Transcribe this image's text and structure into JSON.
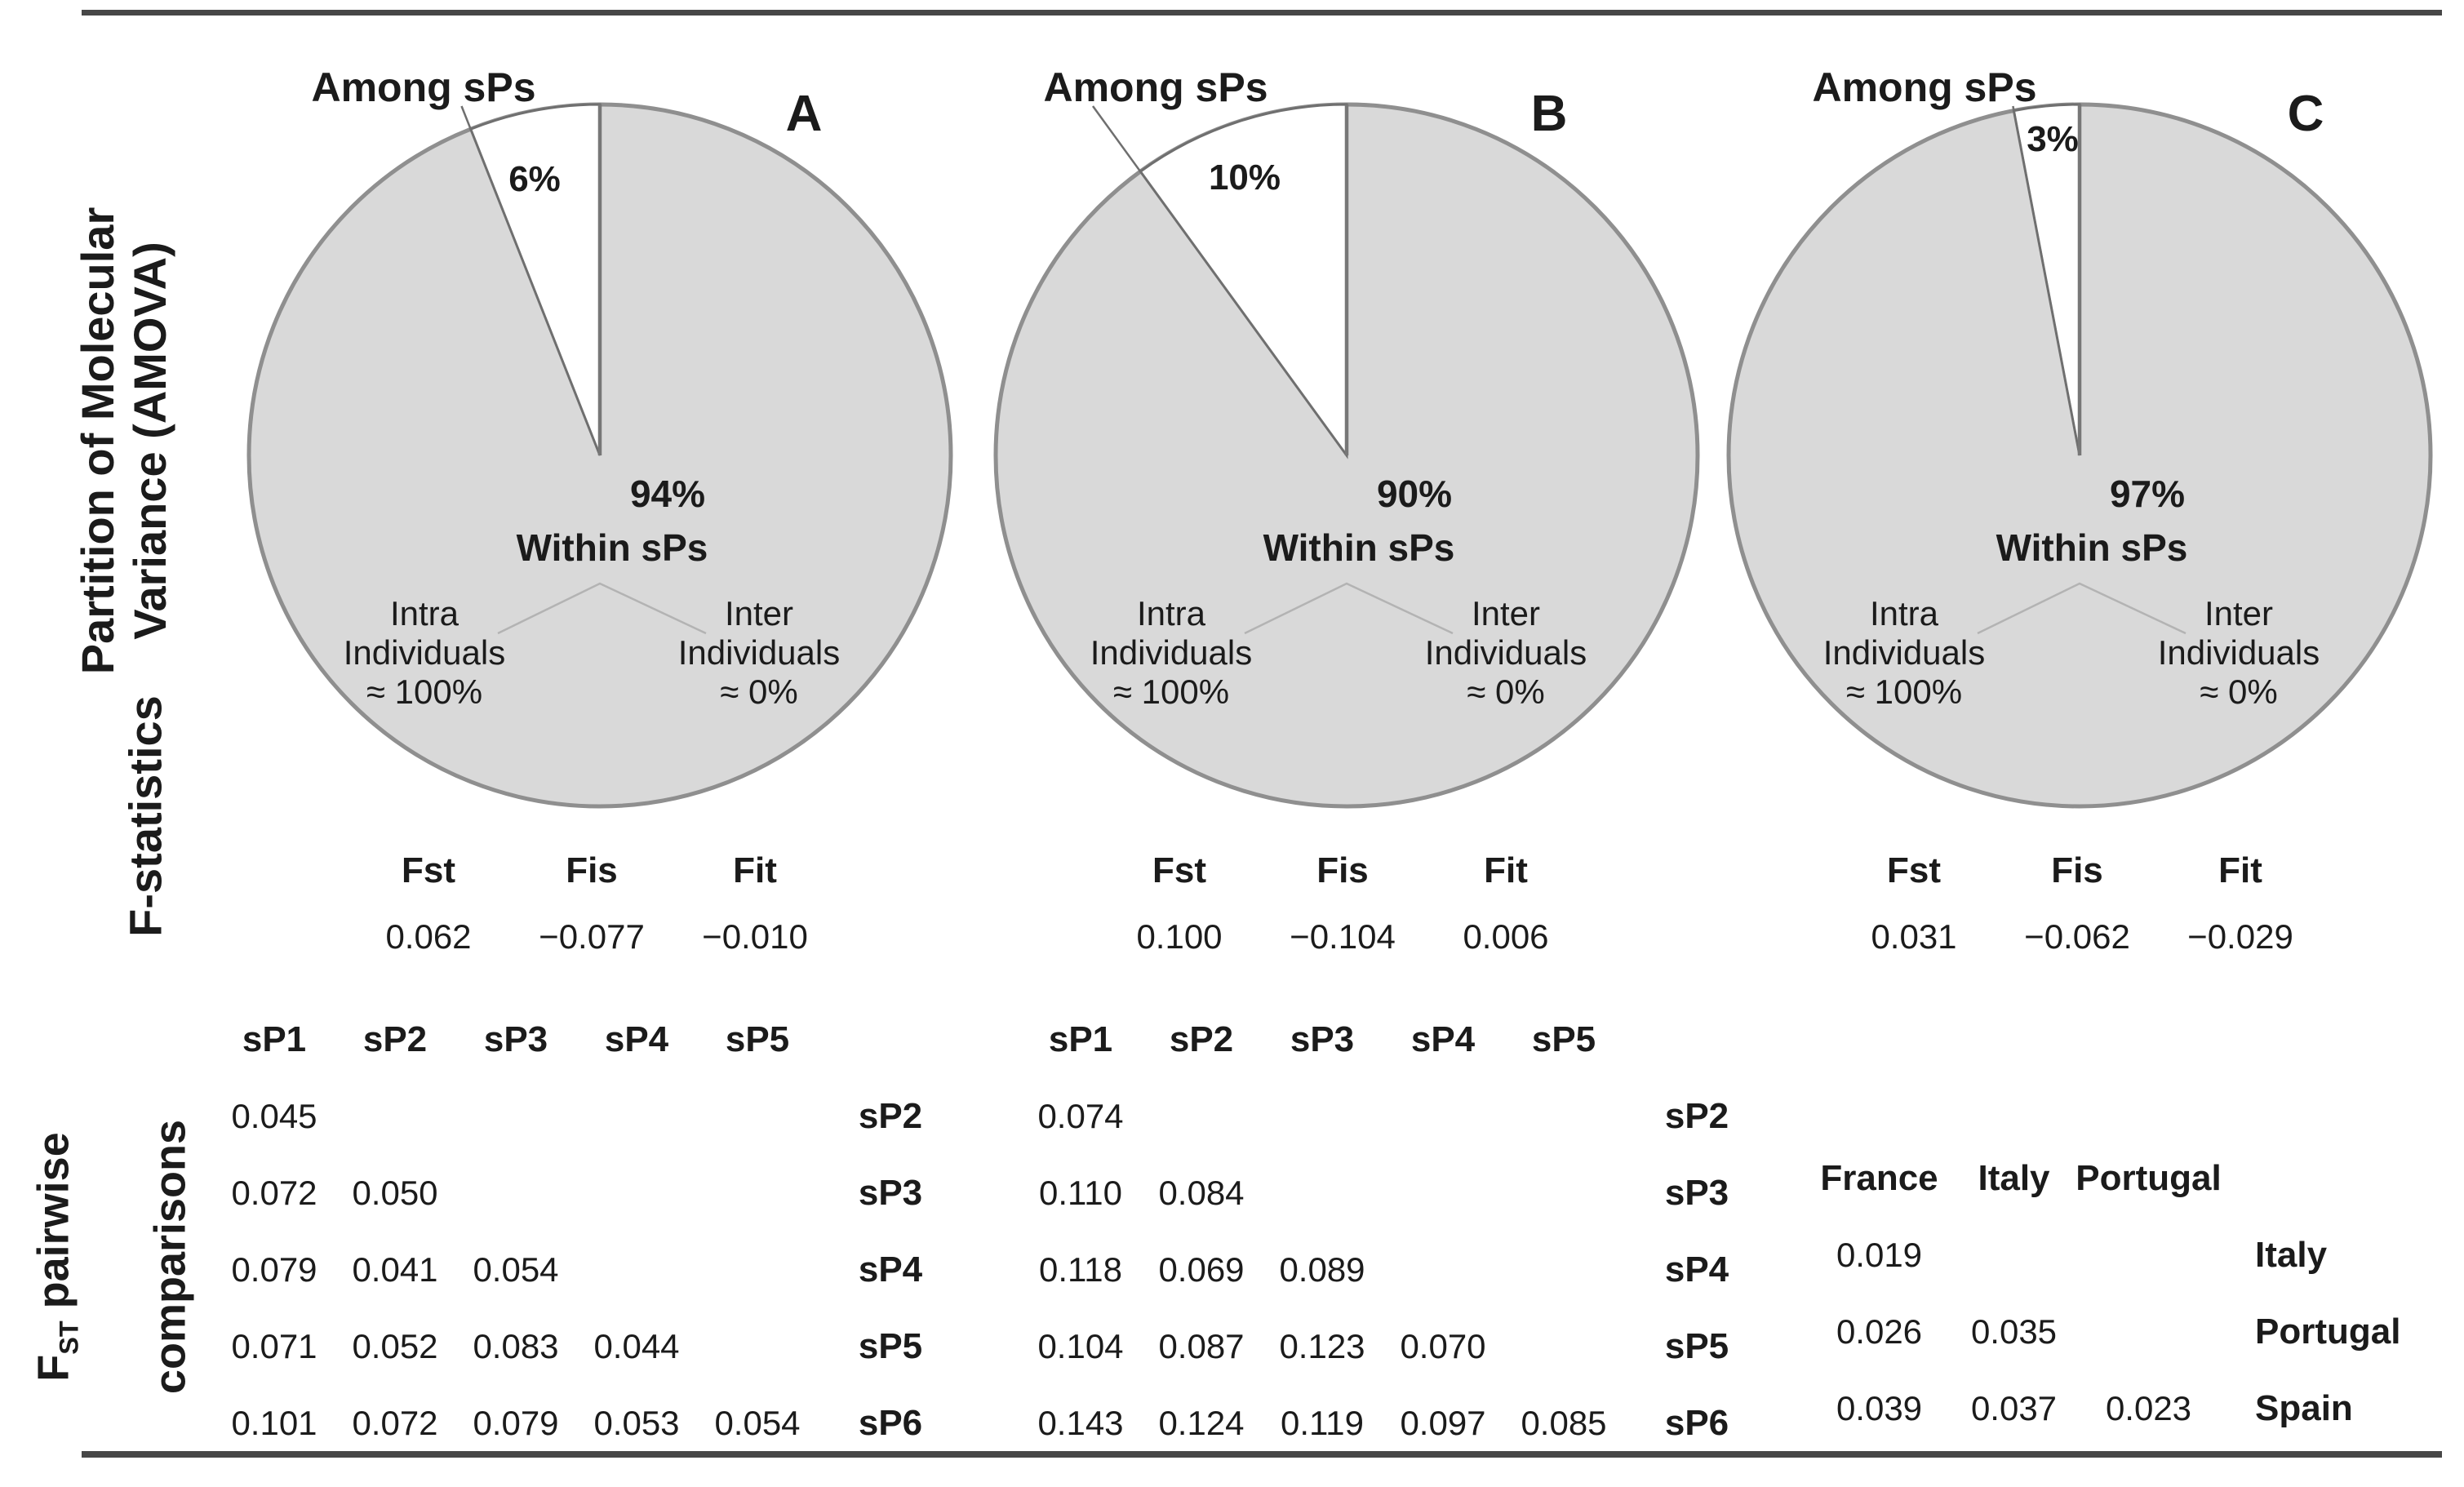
{
  "figure_labels": {
    "amova_row": "Partition of Molecular\nVariance (AMOVA)",
    "fstats_row": "F-statistics",
    "pairwise_row": {
      "f": "F",
      "sub": "ST",
      "rest": " pairwise",
      "line2": "comparisons"
    }
  },
  "colors": {
    "pie_fill": "#d9d9d9",
    "pie_stroke": "#8f8f8f",
    "slice_fill": "#ffffff",
    "wedge_line": "#6f6f6f",
    "vertical_line": "#777777",
    "leader_line": "#b3b3b3",
    "cell_shade": "#d6d6d6",
    "rule": "#474747",
    "text": "#1b1b1b"
  },
  "chart_data": [
    {
      "type": "pie",
      "panel": "A",
      "pie": {
        "slices": [
          {
            "label": "Among sPs",
            "value": 6,
            "pct_label": "6%",
            "color": "#ffffff"
          },
          {
            "label": "Within sPs",
            "value": 94,
            "pct_label": "94%",
            "color": "#d9d9d9"
          }
        ],
        "within_breakdown": [
          {
            "label": "Intra\nIndividuals",
            "approx": "≈ 100%"
          },
          {
            "label": "Inter\nIndividuals",
            "approx": "≈ 0%"
          }
        ]
      },
      "f_statistics": {
        "headers": [
          "Fst",
          "Fis",
          "Fit"
        ],
        "values": [
          0.062,
          -0.077,
          -0.01
        ],
        "value_labels": [
          "0.062",
          "−0.077",
          "−0.010"
        ]
      },
      "fst_pairwise": {
        "col_headers": [
          "sP1",
          "sP2",
          "sP3",
          "sP4",
          "sP5"
        ],
        "row_headers": [
          "sP2",
          "sP3",
          "sP4",
          "sP5",
          "sP6"
        ],
        "rows": [
          [
            0.045
          ],
          [
            0.072,
            0.05
          ],
          [
            0.079,
            0.041,
            0.054
          ],
          [
            0.071,
            0.052,
            0.083,
            0.044
          ],
          [
            0.101,
            0.072,
            0.079,
            0.053,
            0.054
          ]
        ],
        "shaded_cells": [
          [
            0,
            0
          ],
          [
            4,
            0
          ]
        ]
      }
    },
    {
      "type": "pie",
      "panel": "B",
      "pie": {
        "slices": [
          {
            "label": "Among sPs",
            "value": 10,
            "pct_label": "10%",
            "color": "#ffffff"
          },
          {
            "label": "Within sPs",
            "value": 90,
            "pct_label": "90%",
            "color": "#d9d9d9"
          }
        ],
        "within_breakdown": [
          {
            "label": "Intra\nIndividuals",
            "approx": "≈ 100%"
          },
          {
            "label": "Inter\nIndividuals",
            "approx": "≈ 0%"
          }
        ]
      },
      "f_statistics": {
        "headers": [
          "Fst",
          "Fis",
          "Fit"
        ],
        "values": [
          0.1,
          -0.104,
          0.006
        ],
        "value_labels": [
          "0.100",
          "−0.104",
          "0.006"
        ]
      },
      "fst_pairwise": {
        "col_headers": [
          "sP1",
          "sP2",
          "sP3",
          "sP4",
          "sP5"
        ],
        "row_headers": [
          "sP2",
          "sP3",
          "sP4",
          "sP5",
          "sP6"
        ],
        "rows": [
          [
            0.074
          ],
          [
            0.11,
            0.084
          ],
          [
            0.118,
            0.069,
            0.089
          ],
          [
            0.104,
            0.087,
            0.123,
            0.07
          ],
          [
            0.143,
            0.124,
            0.119,
            0.097,
            0.085
          ]
        ],
        "shaded_cells": [
          [
            0,
            0
          ],
          [
            4,
            0
          ]
        ]
      }
    },
    {
      "type": "pie",
      "panel": "C",
      "pie": {
        "slices": [
          {
            "label": "Among sPs",
            "value": 3,
            "pct_label": "3%",
            "color": "#ffffff"
          },
          {
            "label": "Within sPs",
            "value": 97,
            "pct_label": "97%",
            "color": "#d9d9d9"
          }
        ],
        "within_breakdown": [
          {
            "label": "Intra\nIndividuals",
            "approx": "≈ 100%"
          },
          {
            "label": "Inter\nIndividuals",
            "approx": "≈ 0%"
          }
        ]
      },
      "f_statistics": {
        "headers": [
          "Fst",
          "Fis",
          "Fit"
        ],
        "values": [
          0.031,
          -0.062,
          -0.029
        ],
        "value_labels": [
          "0.031",
          "−0.062",
          "−0.029"
        ]
      },
      "fst_pairwise": {
        "col_headers": [
          "France",
          "Italy",
          "Portugal"
        ],
        "row_headers": [
          "Italy",
          "Portugal",
          "Spain"
        ],
        "rows": [
          [
            0.019
          ],
          [
            0.026,
            0.035
          ],
          [
            0.039,
            0.037,
            0.023
          ]
        ],
        "shaded_cells": [
          [
            0,
            0
          ],
          [
            2,
            0
          ]
        ]
      }
    }
  ]
}
